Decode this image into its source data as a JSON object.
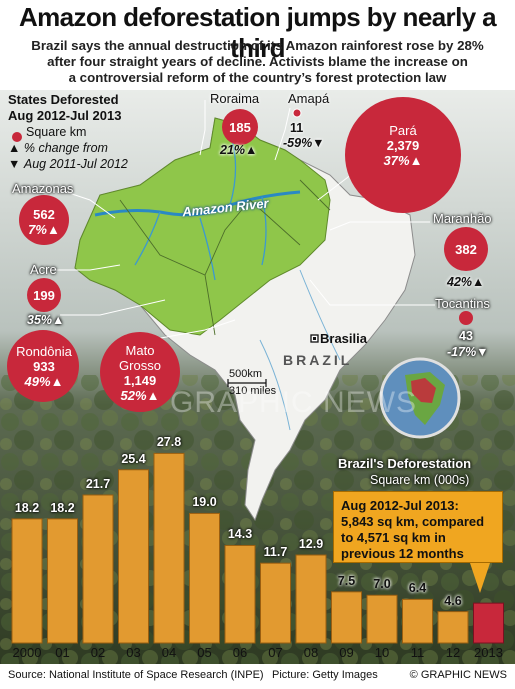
{
  "header": {
    "title": "Amazon deforestation jumps by nearly a third",
    "subtitle_lines": [
      "Brazil says the annual destruction of its Amazon rainforest rose by 28%",
      "after four straight years of decline. Activists blame the increase on",
      "a controversial reform of the country’s forest protection law"
    ]
  },
  "legend": {
    "title": "States Deforested",
    "period": "Aug 2012-Jul 2013",
    "items": [
      "Square km",
      "% change from",
      "Aug 2011-Jul 2012"
    ]
  },
  "states": [
    {
      "name": "Roraima",
      "value": "185",
      "pct": "21%▲"
    },
    {
      "name": "Amapá",
      "value": "11",
      "pct": "-59%▼"
    },
    {
      "name": "Pará",
      "value": "2,379",
      "pct": "37%▲"
    },
    {
      "name": "Amazonas",
      "value": "562",
      "pct": "7%▲"
    },
    {
      "name": "Maranhão",
      "value": "382",
      "pct": "42%▲"
    },
    {
      "name": "Acre",
      "value": "199",
      "pct": "35%▲"
    },
    {
      "name": "Tocantins",
      "value": "43",
      "pct": "-17%▼"
    },
    {
      "name": "Rondônia",
      "value": "933",
      "pct": "49%▲"
    },
    {
      "name": "Mato Grosso",
      "name_lines": [
        "Mato",
        "Grosso"
      ],
      "value": "1,149",
      "pct": "52%▲"
    }
  ],
  "map": {
    "river": "Amazon River",
    "city": "Brasilia",
    "country": "BRAZIL",
    "scale_km": "500km",
    "scale_miles": "310 miles",
    "watermark": "GRAPHIC NEWS"
  },
  "chart_data": {
    "type": "bar",
    "title": "Brazil's Deforestation",
    "ylabel": "Square km (000s)",
    "categories": [
      "2000",
      "01",
      "02",
      "03",
      "04",
      "05",
      "06",
      "07",
      "08",
      "09",
      "10",
      "11",
      "12",
      "2013"
    ],
    "values": [
      18.2,
      18.2,
      21.7,
      25.4,
      27.8,
      19.0,
      14.3,
      11.7,
      12.9,
      7.5,
      7.0,
      6.4,
      4.6,
      5.843
    ],
    "value_labels": [
      "18.2",
      "18.2",
      "21.7",
      "25.4",
      "27.8",
      "19.0",
      "14.3",
      "11.7",
      "12.9",
      "7.5",
      "7.0",
      "6.4",
      "4.6",
      ""
    ],
    "colors": {
      "bar": "#e29a30",
      "highlight": "#c8283b"
    },
    "annotation": "Aug 2012-Jul 2013: 5,843 sq km, compared to 4,571 sq km in previous 12 months",
    "annotation_lines": [
      "Aug 2012-Jul 2013:",
      "5,843 sq km, compared",
      "to 4,571 sq km in",
      "previous 12 months"
    ]
  },
  "footer": {
    "source": "Source: National Institute of Space Research (INPE)",
    "picture": "Picture: Getty Images",
    "credit": "© GRAPHIC NEWS"
  },
  "colors": {
    "state_circle": "#c8283b"
  }
}
